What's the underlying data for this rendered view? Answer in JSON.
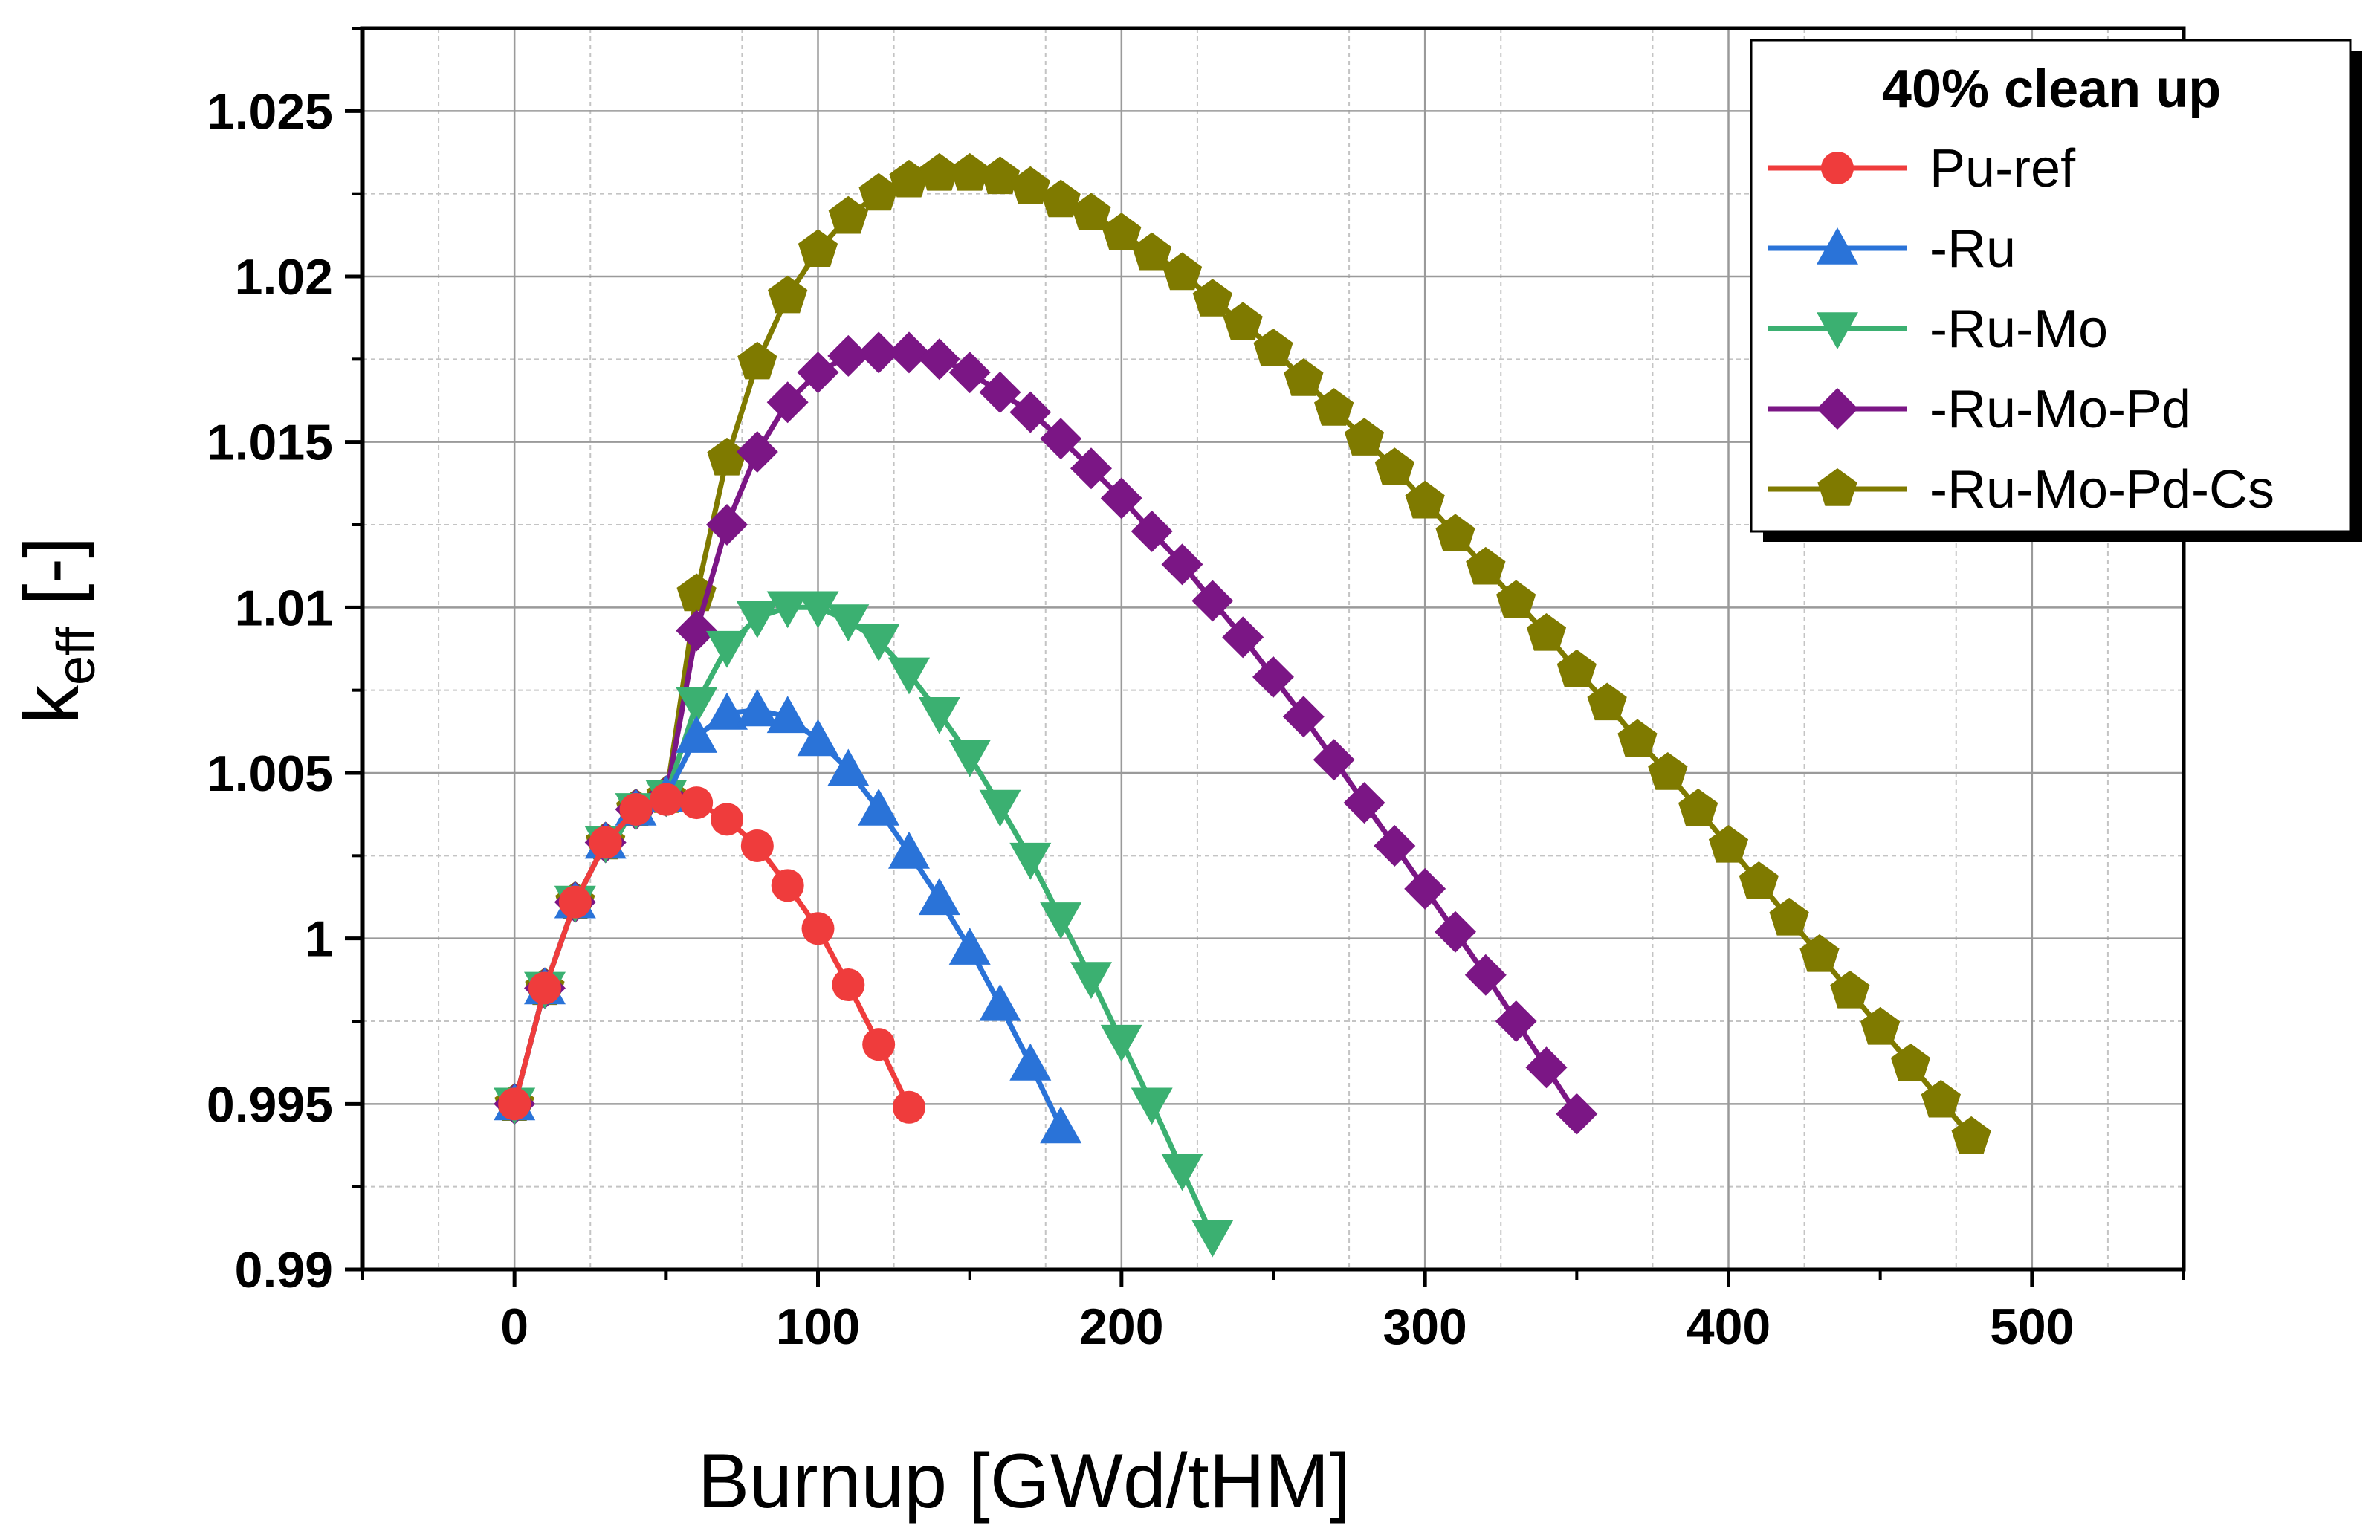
{
  "chart_data": {
    "type": "line",
    "title": "",
    "xlabel": "Burnup [GWd/tHM]",
    "ylabel": {
      "main": "k",
      "sub": "eff",
      "suffix": " [-]"
    },
    "xlim": [
      -50,
      550
    ],
    "ylim": [
      0.99,
      1.0275
    ],
    "xticks": [
      0,
      100,
      200,
      300,
      400,
      500
    ],
    "xtick_labels": [
      "0",
      "100",
      "200",
      "300",
      "400",
      "500"
    ],
    "yticks": [
      0.99,
      0.995,
      1.0,
      1.005,
      1.01,
      1.015,
      1.02,
      1.025
    ],
    "ytick_labels": [
      "0.99",
      "0.995",
      "1",
      "1.005",
      "1.01",
      "1.015",
      "1.02",
      "1.025"
    ],
    "grid": true,
    "legend": {
      "title": "40% clean up",
      "position": "top-right"
    },
    "series": [
      {
        "name": "Pu-ref",
        "color": "#ef3c3c",
        "marker": "circle",
        "x": [
          0,
          10,
          20,
          30,
          40,
          50,
          60,
          70,
          80,
          90,
          100,
          110,
          120,
          130
        ],
        "y": [
          0.995,
          0.9985,
          1.0011,
          1.0029,
          1.0039,
          1.0042,
          1.0041,
          1.0036,
          1.0028,
          1.0016,
          1.0003,
          0.9986,
          0.9968,
          0.9949
        ]
      },
      {
        "name": "-Ru",
        "color": "#2a73d8",
        "marker": "triangle-up",
        "x": [
          0,
          10,
          20,
          30,
          40,
          50,
          60,
          70,
          80,
          90,
          100,
          110,
          120,
          130,
          140,
          150,
          160,
          170,
          180
        ],
        "y": [
          0.995,
          0.9985,
          1.0011,
          1.0029,
          1.0039,
          1.0043,
          1.0061,
          1.0068,
          1.0069,
          1.0067,
          1.006,
          1.0051,
          1.0039,
          1.0026,
          1.0012,
          0.9997,
          0.998,
          0.9962,
          0.9943
        ]
      },
      {
        "name": "-Ru-Mo",
        "color": "#3bb071",
        "marker": "triangle-down",
        "x": [
          0,
          10,
          20,
          30,
          40,
          50,
          60,
          70,
          80,
          90,
          100,
          110,
          120,
          130,
          140,
          150,
          160,
          170,
          180,
          190,
          200,
          210,
          220,
          230
        ],
        "y": [
          0.995,
          0.9985,
          1.0011,
          1.0029,
          1.0039,
          1.0043,
          1.0071,
          1.0088,
          1.0097,
          1.01,
          1.01,
          1.0096,
          1.009,
          1.008,
          1.0068,
          1.0055,
          1.004,
          1.0024,
          1.0006,
          0.9988,
          0.9969,
          0.995,
          0.993,
          0.991
        ]
      },
      {
        "name": "-Ru-Mo-Pd",
        "color": "#7b1685",
        "marker": "diamond",
        "x": [
          0,
          10,
          20,
          30,
          40,
          50,
          60,
          70,
          80,
          90,
          100,
          110,
          120,
          130,
          140,
          150,
          160,
          170,
          180,
          190,
          200,
          210,
          220,
          230,
          240,
          250,
          260,
          270,
          280,
          290,
          300,
          310,
          320,
          330,
          340,
          350
        ],
        "y": [
          0.995,
          0.9985,
          1.0011,
          1.0029,
          1.0039,
          1.0043,
          1.0093,
          1.0125,
          1.0147,
          1.0162,
          1.0171,
          1.0176,
          1.0177,
          1.0177,
          1.0175,
          1.0171,
          1.0165,
          1.0159,
          1.0151,
          1.0142,
          1.0133,
          1.0123,
          1.0113,
          1.0102,
          1.0091,
          1.0079,
          1.0067,
          1.0054,
          1.0041,
          1.0028,
          1.0015,
          1.0002,
          0.9989,
          0.9975,
          0.9961,
          0.9947
        ]
      },
      {
        "name": "-Ru-Mo-Pd-Cs",
        "color": "#7f7a00",
        "marker": "pentagon",
        "x": [
          0,
          10,
          20,
          30,
          40,
          50,
          60,
          70,
          80,
          90,
          100,
          110,
          120,
          130,
          140,
          150,
          160,
          170,
          180,
          190,
          200,
          210,
          220,
          230,
          240,
          250,
          260,
          270,
          280,
          290,
          300,
          310,
          320,
          330,
          340,
          350,
          360,
          370,
          380,
          390,
          400,
          410,
          420,
          430,
          440,
          450,
          460,
          470,
          480
        ],
        "y": [
          0.995,
          0.9985,
          1.0011,
          1.0029,
          1.0039,
          1.0043,
          1.0104,
          1.0145,
          1.0174,
          1.0194,
          1.0208,
          1.0218,
          1.0225,
          1.0229,
          1.0231,
          1.0231,
          1.023,
          1.0227,
          1.0223,
          1.0219,
          1.0213,
          1.0207,
          1.0201,
          1.0193,
          1.0186,
          1.0178,
          1.0169,
          1.016,
          1.0151,
          1.0142,
          1.0132,
          1.0122,
          1.0112,
          1.0102,
          1.0092,
          1.0081,
          1.0071,
          1.006,
          1.005,
          1.0039,
          1.0028,
          1.0017,
          1.0006,
          0.9995,
          0.9984,
          0.9973,
          0.9962,
          0.9951,
          0.994
        ]
      }
    ]
  }
}
